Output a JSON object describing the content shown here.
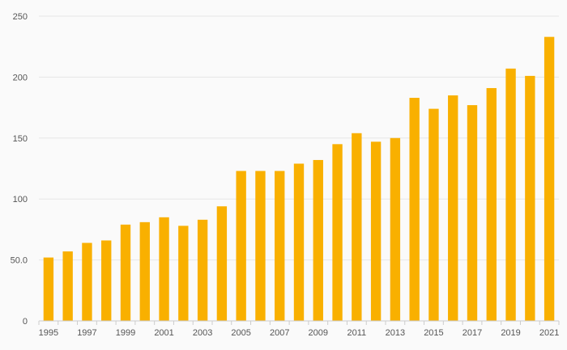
{
  "chart_data": {
    "type": "bar",
    "categories": [
      "1995",
      "1996",
      "1997",
      "1998",
      "1999",
      "2000",
      "2001",
      "2002",
      "2003",
      "2004",
      "2005",
      "2006",
      "2007",
      "2008",
      "2009",
      "2010",
      "2011",
      "2012",
      "2013",
      "2014",
      "2015",
      "2016",
      "2017",
      "2018",
      "2019",
      "2020",
      "2021"
    ],
    "x_tick_labels": [
      "1995",
      "1997",
      "1999",
      "2001",
      "2003",
      "2005",
      "2007",
      "2009",
      "2011",
      "2013",
      "2015",
      "2017",
      "2019",
      "2021"
    ],
    "values": [
      52,
      57,
      64,
      66,
      79,
      81,
      85,
      78,
      83,
      94,
      123,
      123,
      123,
      129,
      132,
      145,
      154,
      147,
      150,
      183,
      174,
      185,
      177,
      191,
      207,
      201,
      233
    ],
    "y_ticks": [
      0,
      50,
      100,
      150,
      200,
      250
    ],
    "y_tick_labels": [
      "0",
      "50.0",
      "100",
      "150",
      "200",
      "250"
    ],
    "ylim": [
      0,
      250
    ],
    "grid": true,
    "bar_color": "#f9b000",
    "title": "",
    "xlabel": "",
    "ylabel": ""
  }
}
